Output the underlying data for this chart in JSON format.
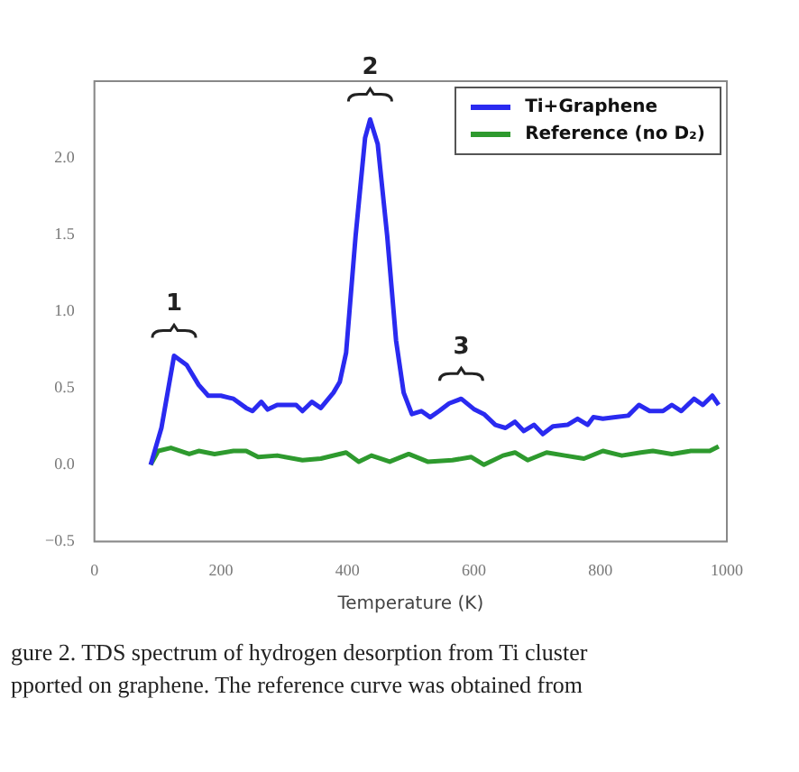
{
  "chart_data": {
    "type": "line",
    "xlabel": "Temperature (K)",
    "xlim": [
      0,
      1000
    ],
    "xticks": [
      0,
      200,
      400,
      600,
      800,
      1000
    ],
    "ylim": [
      -0.5,
      2.5
    ],
    "yticks": [
      {
        "value": -0.5,
        "label": "−0.5"
      },
      {
        "value": 0,
        "label": "0.0"
      },
      {
        "value": 0.5,
        "label": "0.5"
      },
      {
        "value": 1,
        "label": "1.0"
      },
      {
        "value": 1.5,
        "label": "1.5"
      },
      {
        "value": 2,
        "label": "2.0"
      }
    ],
    "grid": false,
    "legend": "top right",
    "marker": "none",
    "line_style": "solid",
    "series": [
      {
        "name": "Ti+Graphene",
        "color": "#2a2af0",
        "x": [
          89,
          106,
          126,
          146,
          165,
          180,
          200,
          220,
          240,
          250,
          264,
          274,
          289,
          319,
          329,
          344,
          358,
          378,
          388,
          398,
          413,
          428,
          436,
          448,
          463,
          477,
          489,
          502,
          517,
          531,
          545,
          561,
          580,
          601,
          616,
          634,
          650,
          665,
          679,
          695,
          709,
          725,
          748,
          764,
          780,
          789,
          804,
          824,
          844,
          861,
          878,
          899,
          913,
          928,
          948,
          962,
          977,
          987
        ],
        "values": [
          0,
          0.24,
          0.71,
          0.65,
          0.52,
          0.45,
          0.45,
          0.43,
          0.37,
          0.35,
          0.41,
          0.36,
          0.39,
          0.39,
          0.35,
          0.41,
          0.37,
          0.47,
          0.54,
          0.73,
          1.49,
          2.13,
          2.25,
          2.09,
          1.49,
          0.81,
          0.47,
          0.33,
          0.35,
          0.31,
          0.35,
          0.4,
          0.43,
          0.36,
          0.33,
          0.26,
          0.24,
          0.28,
          0.22,
          0.26,
          0.2,
          0.25,
          0.26,
          0.3,
          0.26,
          0.31,
          0.3,
          0.31,
          0.32,
          0.39,
          0.35,
          0.35,
          0.39,
          0.35,
          0.43,
          0.39,
          0.45,
          0.39
        ]
      },
      {
        "name": "Reference (no D₂)",
        "color": "#2e9a2e",
        "x": [
          89,
          101,
          121,
          150,
          165,
          190,
          220,
          240,
          259,
          289,
          329,
          358,
          398,
          418,
          438,
          467,
          497,
          527,
          566,
          596,
          616,
          646,
          665,
          685,
          715,
          744,
          774,
          804,
          834,
          864,
          883,
          913,
          943,
          973,
          987
        ],
        "values": [
          0,
          0.09,
          0.11,
          0.07,
          0.09,
          0.07,
          0.09,
          0.09,
          0.05,
          0.06,
          0.03,
          0.04,
          0.08,
          0.02,
          0.06,
          0.02,
          0.07,
          0.02,
          0.03,
          0.05,
          0,
          0.06,
          0.08,
          0.03,
          0.08,
          0.06,
          0.04,
          0.09,
          0.06,
          0.08,
          0.09,
          0.07,
          0.09,
          0.09,
          0.12
        ]
      }
    ],
    "annotations": [
      {
        "text": "1",
        "x": 126,
        "y": 0.71
      },
      {
        "text": "2",
        "x": 436,
        "y": 2.25
      },
      {
        "text": "3",
        "x": 580,
        "y": 0.43
      },
      "gure 2. TDS spectrum of hydrogen desorption from Ti cluster",
      "pported on graphene. The reference curve was obtained from"
    ]
  }
}
